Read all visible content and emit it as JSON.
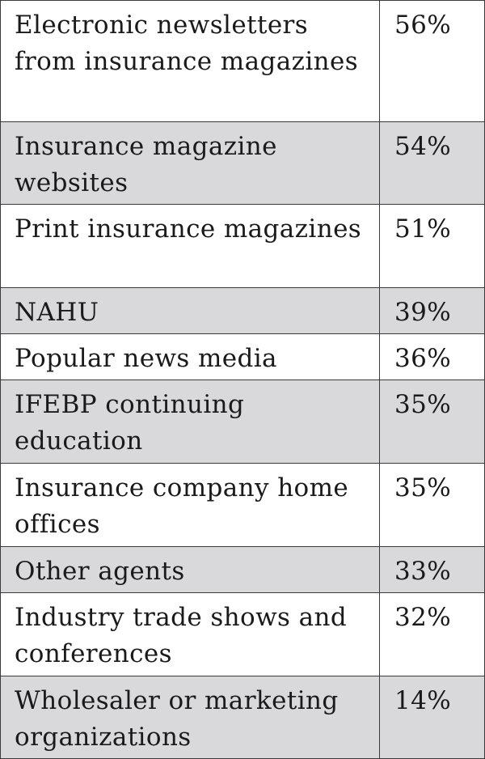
{
  "chart_data": {
    "type": "table",
    "shade_color": "#d9d9db",
    "rows": [
      {
        "label": "Electronic newsletters from insurance magazines",
        "value": "56%",
        "shaded": false
      },
      {
        "label": "Insurance magazine websites",
        "value": "54%",
        "shaded": true
      },
      {
        "label": "Print insurance magazines",
        "value": "51%",
        "shaded": false
      },
      {
        "label": "NAHU",
        "value": "39%",
        "shaded": true
      },
      {
        "label": "Popular news media",
        "value": "36%",
        "shaded": false
      },
      {
        "label": "IFEBP continuing education",
        "value": "35%",
        "shaded": true
      },
      {
        "label": "Insurance company home offices",
        "value": "35%",
        "shaded": false
      },
      {
        "label": "Other agents",
        "value": "33%",
        "shaded": true
      },
      {
        "label": "Industry trade shows and conferences",
        "value": "32%",
        "shaded": false
      },
      {
        "label": "Wholesaler or marketing organizations",
        "value": "14%",
        "shaded": true
      }
    ]
  }
}
